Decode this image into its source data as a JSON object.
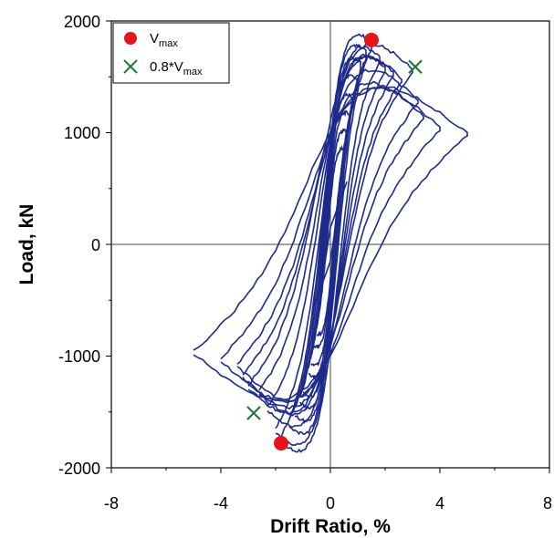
{
  "chart_data": {
    "type": "line",
    "title": "",
    "xlabel": "Drift Ratio, %",
    "ylabel": "Load, kN",
    "xlim": [
      -8,
      8
    ],
    "ylim": [
      -2000,
      2000
    ],
    "xticks": [
      -8,
      -4,
      0,
      4,
      8
    ],
    "yticks": [
      -2000,
      -1000,
      0,
      1000,
      2000
    ],
    "grid": false,
    "zero_lines": true,
    "legend_position": "top-left",
    "colors": {
      "hysteresis": "#1c2a8c",
      "vmax": "#e8141c",
      "vmax08": "#1f7a3a"
    },
    "legend": {
      "vmax": {
        "main": "V",
        "sub": "max"
      },
      "vmax08": {
        "main": "0.8*V",
        "sub": "max"
      }
    },
    "series": [
      {
        "marker": "line",
        "cycles": [
          [
            0.3,
            350
          ],
          [
            0.6,
            560
          ],
          [
            0.0,
            150
          ],
          [
            -0.3,
            -320
          ],
          [
            -0.6,
            -560
          ],
          [
            0.0,
            -150
          ],
          [
            0.3,
            350
          ]
        ],
        "hysteresis_amplitudes": [
          {
            "dx": 0.5,
            "py": 900,
            "ny": -850,
            "w": 160
          },
          {
            "dx": 0.6,
            "py": 1050,
            "ny": -950,
            "w": 180
          },
          {
            "dx": 0.7,
            "py": 1200,
            "ny": -1100,
            "w": 200
          },
          {
            "dx": 0.8,
            "py": 1350,
            "ny": -1200,
            "w": 220
          },
          {
            "dx": 1.0,
            "py": 1500,
            "ny": -1350,
            "w": 250
          },
          {
            "dx": 1.1,
            "py": 1650,
            "ny": -1450,
            "w": 260
          },
          {
            "dx": 1.3,
            "py": 1750,
            "ny": -1550,
            "w": 280
          },
          {
            "dx": 1.5,
            "py": 1830,
            "ny": -1650,
            "w": 300
          },
          {
            "dx": 1.8,
            "py": 1700,
            "ny": -1780,
            "w": 320
          },
          {
            "dx": 2.0,
            "py": 1600,
            "ny": -1700,
            "w": 350
          },
          {
            "dx": 2.3,
            "py": 1550,
            "ny": -1500,
            "w": 400
          },
          {
            "dx": 2.6,
            "py": 1500,
            "ny": -1350,
            "w": 450
          },
          {
            "dx": 3.0,
            "py": 1580,
            "ny": -1300,
            "w": 500
          },
          {
            "dx": 3.2,
            "py": 1300,
            "ny": -1200,
            "w": 550
          },
          {
            "dx": 3.4,
            "py": 1150,
            "ny": -1100,
            "w": 580
          },
          {
            "dx": 4.0,
            "py": 1050,
            "ny": -1050,
            "w": 650
          },
          {
            "dx": 5.0,
            "py": 1000,
            "ny": -980,
            "w": 700
          }
        ]
      },
      {
        "name": "Vmax",
        "marker": "circle",
        "points": [
          [
            1.5,
            1830
          ],
          [
            -1.8,
            -1780
          ]
        ]
      },
      {
        "name": "0.8*Vmax",
        "marker": "x",
        "points": [
          [
            3.1,
            1590
          ],
          [
            -2.8,
            -1510
          ]
        ]
      }
    ]
  }
}
